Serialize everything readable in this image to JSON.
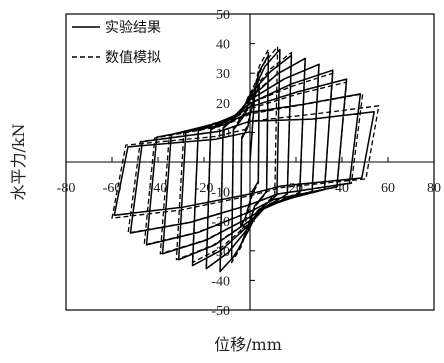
{
  "chart_data": {
    "type": "line",
    "title": "",
    "xlabel": "位移/mm",
    "ylabel": "水平力/kN",
    "xlim": [
      -80,
      80
    ],
    "ylim": [
      -50,
      50
    ],
    "x_ticks": [
      -80,
      -60,
      -40,
      -20,
      20,
      40,
      60,
      80
    ],
    "y_ticks": [
      50,
      40,
      30,
      20,
      10,
      -10,
      -20,
      -30,
      -40,
      -50
    ],
    "grid": false,
    "legend": "top-left",
    "series": [
      {
        "name": "实验结果",
        "line_style": "solid",
        "color": "#000000",
        "points": [
          [
            0,
            0
          ],
          [
            2,
            22.1
          ],
          [
            4,
            26
          ],
          [
            3.6,
            -6.6
          ],
          [
            1,
            -9.9
          ],
          [
            0,
            -13.2
          ],
          [
            -2,
            -18.7
          ],
          [
            -4,
            -22
          ],
          [
            -3.6,
            7.8
          ],
          [
            -1,
            11.7
          ],
          [
            0,
            15.6
          ],
          [
            4,
            30.6
          ],
          [
            8,
            36
          ],
          [
            7.2,
            -9.9
          ],
          [
            2,
            -14.9
          ],
          [
            0,
            -19.8
          ],
          [
            -4,
            -28.1
          ],
          [
            -8,
            -33
          ],
          [
            -7.2,
            10.8
          ],
          [
            -2,
            16.2
          ],
          [
            0,
            21.6
          ],
          [
            6.5,
            32.3
          ],
          [
            13,
            38
          ],
          [
            11.7,
            -11.1
          ],
          [
            3.3,
            -16.7
          ],
          [
            0,
            -22.2
          ],
          [
            -6.5,
            -31.5
          ],
          [
            -13,
            -37
          ],
          [
            -11.7,
            11.4
          ],
          [
            -3.3,
            17.1
          ],
          [
            0,
            22.8
          ],
          [
            9,
            30.6
          ],
          [
            18,
            36
          ],
          [
            16.2,
            -10.8
          ],
          [
            4.5,
            -16.2
          ],
          [
            0,
            -21.6
          ],
          [
            -9.5,
            -30.6
          ],
          [
            -19,
            -36
          ],
          [
            -17.1,
            10.8
          ],
          [
            -4.8,
            16.2
          ],
          [
            0,
            21.6
          ],
          [
            12,
            29.8
          ],
          [
            24,
            35
          ],
          [
            21.6,
            -10.5
          ],
          [
            6,
            -15.8
          ],
          [
            0,
            -21
          ],
          [
            -12.5,
            -29.8
          ],
          [
            -25,
            -35
          ],
          [
            -22.5,
            10.5
          ],
          [
            -6.3,
            15.8
          ],
          [
            0,
            21
          ],
          [
            15,
            28.1
          ],
          [
            30,
            33
          ],
          [
            27,
            -9.9
          ],
          [
            7.5,
            -14.9
          ],
          [
            0,
            -19.8
          ],
          [
            -15.5,
            -28.1
          ],
          [
            -31,
            -33
          ],
          [
            -27.9,
            9.9
          ],
          [
            -7.8,
            14.9
          ],
          [
            0,
            19.8
          ],
          [
            18,
            26.4
          ],
          [
            36,
            31
          ],
          [
            32.4,
            -9.3
          ],
          [
            9,
            -14
          ],
          [
            0,
            -18.6
          ],
          [
            -19,
            -26.4
          ],
          [
            -38,
            -31
          ],
          [
            -34.2,
            9.3
          ],
          [
            -9.5,
            14
          ],
          [
            0,
            18.6
          ],
          [
            21,
            23.8
          ],
          [
            42,
            28
          ],
          [
            37.8,
            -8.4
          ],
          [
            10.5,
            -12.6
          ],
          [
            0,
            -16.8
          ],
          [
            -22.5,
            -23.8
          ],
          [
            -45,
            -28
          ],
          [
            -40.5,
            8.4
          ],
          [
            -11.3,
            12.6
          ],
          [
            0,
            16.8
          ],
          [
            24,
            19.6
          ],
          [
            48,
            23
          ],
          [
            43.2,
            -7.2
          ],
          [
            12,
            -10.8
          ],
          [
            0,
            -14.4
          ],
          [
            -26,
            -20.4
          ],
          [
            -52,
            -24
          ],
          [
            -46.8,
            6.9
          ],
          [
            -13,
            10.4
          ],
          [
            0,
            13.8
          ],
          [
            27,
            14.5
          ],
          [
            54,
            17
          ],
          [
            48.6,
            -5.4
          ],
          [
            13.5,
            -8.1
          ],
          [
            0,
            -10.8
          ],
          [
            -29.5,
            -15.3
          ],
          [
            -59,
            -18
          ],
          [
            -53.1,
            5.1
          ],
          [
            -14.8,
            7.7
          ],
          [
            0,
            10.2
          ]
        ]
      },
      {
        "name": "数值模拟",
        "line_style": "dashed",
        "color": "#000000",
        "points": [
          [
            0,
            0
          ],
          [
            2,
            23.8
          ],
          [
            4,
            28
          ],
          [
            3.6,
            -7.2
          ],
          [
            1,
            -10.8
          ],
          [
            0,
            -14.4
          ],
          [
            -2,
            -20.4
          ],
          [
            -4,
            -24
          ],
          [
            -3.6,
            8.4
          ],
          [
            -1,
            12.6
          ],
          [
            0,
            16.8
          ],
          [
            4,
            32.3
          ],
          [
            8,
            38
          ],
          [
            7.2,
            -10.2
          ],
          [
            2,
            -15.3
          ],
          [
            0,
            -20.4
          ],
          [
            -4,
            -28.9
          ],
          [
            -8,
            -34
          ],
          [
            -7.2,
            11.4
          ],
          [
            -2,
            17.1
          ],
          [
            0,
            22.8
          ],
          [
            6,
            33.2
          ],
          [
            12,
            39
          ],
          [
            10.8,
            -11.1
          ],
          [
            3,
            -16.7
          ],
          [
            0,
            -22.2
          ],
          [
            -6.5,
            -31.5
          ],
          [
            -13,
            -37
          ],
          [
            -11.7,
            11.7
          ],
          [
            -3.3,
            17.6
          ],
          [
            0,
            23.4
          ],
          [
            9,
            31.5
          ],
          [
            18,
            37
          ],
          [
            16.2,
            -10.8
          ],
          [
            4.5,
            -16.2
          ],
          [
            0,
            -21.6
          ],
          [
            -9.5,
            -30.6
          ],
          [
            -19,
            -36
          ],
          [
            -17.1,
            11.1
          ],
          [
            -4.8,
            16.7
          ],
          [
            0,
            22.2
          ],
          [
            12,
            29.8
          ],
          [
            24,
            35
          ],
          [
            21.6,
            -10.2
          ],
          [
            6,
            -15.3
          ],
          [
            0,
            -20.4
          ],
          [
            -12.5,
            -28.9
          ],
          [
            -25,
            -34
          ],
          [
            -22.5,
            10.5
          ],
          [
            -6.3,
            15.8
          ],
          [
            0,
            21
          ],
          [
            15,
            28.1
          ],
          [
            30,
            33
          ],
          [
            27,
            -9.9
          ],
          [
            7.5,
            -14.9
          ],
          [
            0,
            -19.8
          ],
          [
            -16,
            -28.1
          ],
          [
            -32,
            -33
          ],
          [
            -28.8,
            9.9
          ],
          [
            -8,
            14.9
          ],
          [
            0,
            19.8
          ],
          [
            18,
            25.5
          ],
          [
            36,
            30
          ],
          [
            32.4,
            -9.3
          ],
          [
            9,
            -14
          ],
          [
            0,
            -18.6
          ],
          [
            -19.5,
            -26.4
          ],
          [
            -39,
            -31
          ],
          [
            -35.1,
            9
          ],
          [
            -9.8,
            13.5
          ],
          [
            0,
            18
          ],
          [
            21,
            23
          ],
          [
            42,
            27
          ],
          [
            37.8,
            -8.4
          ],
          [
            10.5,
            -12.6
          ],
          [
            0,
            -16.8
          ],
          [
            -23,
            -23.8
          ],
          [
            -46,
            -28
          ],
          [
            -41.4,
            8.1
          ],
          [
            -11.5,
            12.2
          ],
          [
            0,
            16.2
          ],
          [
            24.5,
            19.6
          ],
          [
            49,
            23
          ],
          [
            44.1,
            -7.2
          ],
          [
            12.3,
            -10.8
          ],
          [
            0,
            -14.4
          ],
          [
            -26.5,
            -20.4
          ],
          [
            -53,
            -24
          ],
          [
            -47.7,
            6.9
          ],
          [
            -13.3,
            10.4
          ],
          [
            0,
            13.8
          ],
          [
            28,
            16.2
          ],
          [
            56,
            19
          ],
          [
            50.4,
            -5.7
          ],
          [
            14,
            -8.6
          ],
          [
            0,
            -11.4
          ],
          [
            -30,
            -16.2
          ],
          [
            -60,
            -19
          ],
          [
            -54,
            5.7
          ],
          [
            -15,
            8.6
          ],
          [
            0,
            11.4
          ]
        ]
      }
    ]
  }
}
